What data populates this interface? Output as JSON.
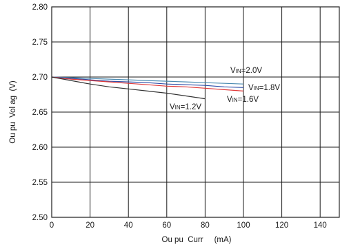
{
  "chart_data": {
    "type": "line",
    "title": "",
    "xlabel": "Ou pu  Curr     (mA)",
    "ylabel": "Ou pu  Vol ag  (V)",
    "xlim": [
      0,
      150
    ],
    "ylim": [
      2.5,
      2.8
    ],
    "grid": true,
    "x_ticks": [
      0,
      20,
      40,
      60,
      80,
      100,
      120,
      140
    ],
    "y_ticks": [
      2.5,
      2.55,
      2.6,
      2.65,
      2.7,
      2.75,
      2.8
    ],
    "x_tick_labels": [
      "0",
      "20",
      "40",
      "60",
      "80",
      "100",
      "120",
      "140"
    ],
    "y_tick_labels": [
      "2.50",
      "2.55",
      "2.60",
      "2.65",
      "2.70",
      "2.75",
      "2.80"
    ],
    "series": [
      {
        "annotation": {
          "prefix": "V",
          "sub": "IN",
          "suffix": "=2.0V"
        },
        "color": "#4a8ab0",
        "x": [
          0,
          10,
          20,
          30,
          40,
          50,
          60,
          70,
          80,
          90,
          100
        ],
        "y": [
          2.7,
          2.699,
          2.698,
          2.697,
          2.696,
          2.695,
          2.694,
          2.693,
          2.692,
          2.691,
          2.69
        ]
      },
      {
        "annotation": {
          "prefix": "V",
          "sub": "IN",
          "suffix": "=1.8V"
        },
        "color": "#2f4fa8",
        "x": [
          0,
          10,
          20,
          30,
          40,
          50,
          60,
          70,
          80,
          90,
          100
        ],
        "y": [
          2.7,
          2.698,
          2.696,
          2.694,
          2.693,
          2.692,
          2.69,
          2.689,
          2.688,
          2.686,
          2.685
        ]
      },
      {
        "annotation": {
          "prefix": "V",
          "sub": "IN",
          "suffix": "=1.6V"
        },
        "color": "#e03a3a",
        "x": [
          0,
          10,
          20,
          30,
          40,
          50,
          60,
          70,
          80,
          90,
          100
        ],
        "y": [
          2.7,
          2.697,
          2.695,
          2.693,
          2.691,
          2.689,
          2.687,
          2.686,
          2.684,
          2.682,
          2.68
        ]
      },
      {
        "annotation": {
          "prefix": "V",
          "sub": "IN",
          "suffix": "=1.2V"
        },
        "color": "#333333",
        "x": [
          0,
          10,
          20,
          30,
          40,
          50,
          60,
          70,
          80
        ],
        "y": [
          2.7,
          2.695,
          2.69,
          2.686,
          2.683,
          2.68,
          2.677,
          2.673,
          2.669
        ]
      }
    ]
  }
}
